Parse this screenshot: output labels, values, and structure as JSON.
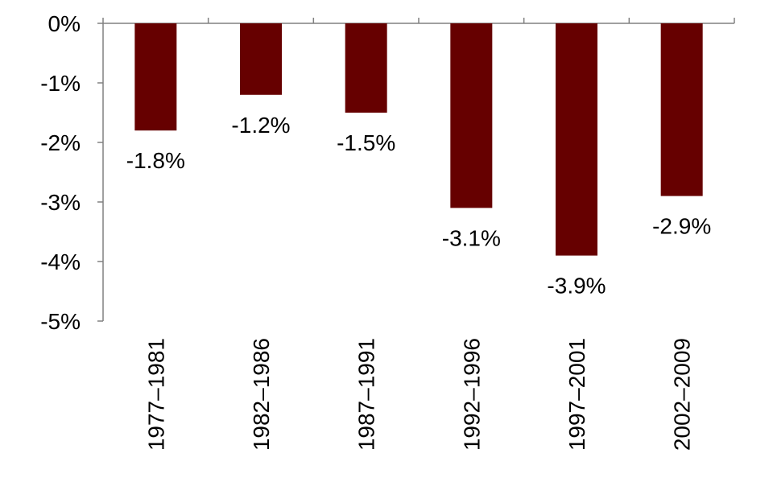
{
  "chart_data": {
    "type": "bar",
    "categories": [
      "1977–1981",
      "1982–1986",
      "1987–1991",
      "1992–1996",
      "1997–2001",
      "2002–2009"
    ],
    "values": [
      -1.8,
      -1.2,
      -1.5,
      -3.1,
      -3.9,
      -2.9
    ],
    "data_labels": [
      "-1.8%",
      "-1.2%",
      "-1.5%",
      "-3.1%",
      "-3.9%",
      "-2.9%"
    ],
    "y_ticks": [
      0,
      -1,
      -2,
      -3,
      -4,
      -5
    ],
    "y_tick_labels": [
      "0%",
      "-1%",
      "-2%",
      "-3%",
      "-4%",
      "-5%"
    ],
    "ylim": [
      -5,
      0
    ],
    "title": "",
    "xlabel": "",
    "ylabel": "",
    "grid": false,
    "bar_color": "#660000"
  }
}
